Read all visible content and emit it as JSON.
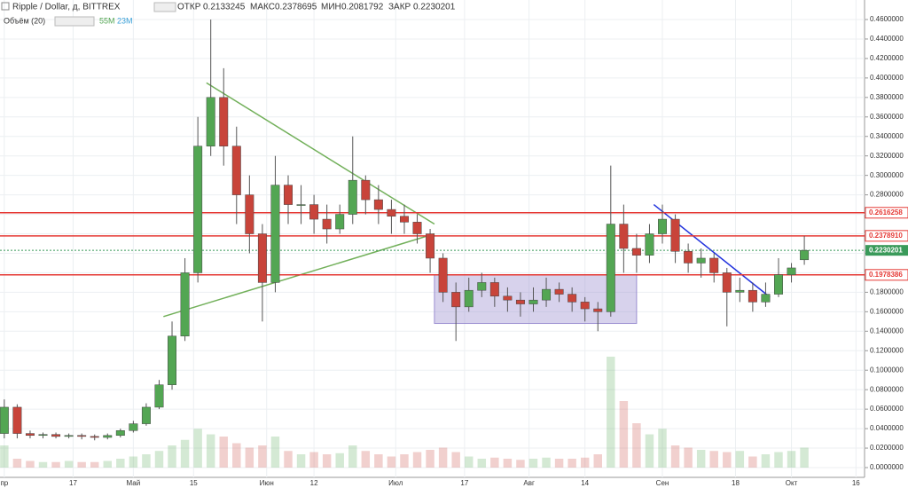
{
  "chart_data": {
    "type": "candlestick",
    "title": "Ripple / Dollar, д, BITTREX",
    "ohlc_labels": [
      "ОТКР",
      "МАКС",
      "МИН",
      "ЗАКР"
    ],
    "ohlc_values": [
      0.2133245,
      0.2378695,
      0.2081792,
      0.2230201
    ],
    "volume_title": "Объём (20)",
    "volume_labels": [
      "55M",
      "23M"
    ],
    "x": [
      0,
      3,
      6,
      9,
      12,
      15,
      18,
      21,
      24,
      27,
      30,
      33,
      36,
      39,
      42,
      45,
      48,
      51,
      54,
      57,
      60,
      63,
      66,
      69,
      72,
      75,
      78,
      81,
      84,
      87,
      90,
      93,
      96,
      99,
      102,
      105,
      108,
      111,
      114,
      117,
      120,
      123,
      126,
      129,
      132,
      135,
      138,
      141,
      144,
      147,
      150,
      153,
      156,
      159,
      162,
      165,
      168,
      171,
      174,
      177,
      180,
      183,
      186
    ],
    "open": [
      0.035,
      0.062,
      0.035,
      0.033,
      0.034,
      0.032,
      0.033,
      0.032,
      0.031,
      0.033,
      0.038,
      0.045,
      0.062,
      0.085,
      0.135,
      0.2,
      0.33,
      0.38,
      0.33,
      0.28,
      0.24,
      0.19,
      0.29,
      0.27,
      0.27,
      0.255,
      0.245,
      0.26,
      0.295,
      0.275,
      0.265,
      0.258,
      0.252,
      0.24,
      0.215,
      0.18,
      0.165,
      0.182,
      0.19,
      0.176,
      0.172,
      0.168,
      0.172,
      0.183,
      0.178,
      0.17,
      0.163,
      0.16,
      0.25,
      0.225,
      0.218,
      0.24,
      0.255,
      0.222,
      0.21,
      0.215,
      0.2,
      0.18,
      0.182,
      0.17,
      0.178,
      0.198,
      0.2133245
    ],
    "high": [
      0.07,
      0.065,
      0.038,
      0.036,
      0.036,
      0.035,
      0.035,
      0.034,
      0.035,
      0.04,
      0.048,
      0.066,
      0.09,
      0.15,
      0.215,
      0.36,
      0.46,
      0.41,
      0.35,
      0.3,
      0.25,
      0.32,
      0.3,
      0.29,
      0.28,
      0.27,
      0.27,
      0.34,
      0.3,
      0.29,
      0.275,
      0.27,
      0.26,
      0.245,
      0.22,
      0.19,
      0.195,
      0.2,
      0.195,
      0.185,
      0.18,
      0.185,
      0.195,
      0.19,
      0.185,
      0.175,
      0.17,
      0.31,
      0.27,
      0.24,
      0.25,
      0.27,
      0.26,
      0.23,
      0.225,
      0.22,
      0.205,
      0.195,
      0.19,
      0.19,
      0.215,
      0.21,
      0.2378695
    ],
    "low": [
      0.03,
      0.03,
      0.03,
      0.03,
      0.03,
      0.03,
      0.029,
      0.028,
      0.029,
      0.031,
      0.036,
      0.043,
      0.06,
      0.08,
      0.13,
      0.19,
      0.32,
      0.31,
      0.25,
      0.22,
      0.15,
      0.18,
      0.25,
      0.25,
      0.24,
      0.23,
      0.24,
      0.25,
      0.26,
      0.25,
      0.24,
      0.24,
      0.23,
      0.2,
      0.17,
      0.13,
      0.16,
      0.175,
      0.165,
      0.16,
      0.155,
      0.16,
      0.165,
      0.17,
      0.16,
      0.15,
      0.14,
      0.155,
      0.2,
      0.2,
      0.21,
      0.23,
      0.21,
      0.2,
      0.195,
      0.19,
      0.145,
      0.17,
      0.16,
      0.165,
      0.175,
      0.19,
      0.2081792
    ],
    "close": [
      0.062,
      0.035,
      0.033,
      0.034,
      0.032,
      0.033,
      0.032,
      0.031,
      0.033,
      0.038,
      0.045,
      0.062,
      0.085,
      0.135,
      0.2,
      0.33,
      0.38,
      0.33,
      0.28,
      0.24,
      0.19,
      0.29,
      0.27,
      0.27,
      0.255,
      0.245,
      0.26,
      0.295,
      0.275,
      0.265,
      0.258,
      0.252,
      0.24,
      0.215,
      0.18,
      0.165,
      0.182,
      0.19,
      0.176,
      0.172,
      0.168,
      0.172,
      0.183,
      0.178,
      0.17,
      0.163,
      0.16,
      0.25,
      0.225,
      0.218,
      0.24,
      0.255,
      0.222,
      0.21,
      0.215,
      0.2,
      0.18,
      0.182,
      0.17,
      0.178,
      0.198,
      0.205,
      0.2230201
    ],
    "volume": [
      20,
      8,
      6,
      5,
      5,
      6,
      5,
      5,
      6,
      8,
      10,
      12,
      15,
      20,
      25,
      35,
      30,
      28,
      22,
      18,
      20,
      28,
      15,
      12,
      14,
      12,
      13,
      20,
      15,
      12,
      10,
      12,
      14,
      16,
      18,
      14,
      10,
      8,
      9,
      8,
      7,
      8,
      9,
      8,
      8,
      9,
      12,
      100,
      60,
      40,
      30,
      35,
      20,
      18,
      16,
      15,
      14,
      15,
      10,
      12,
      14,
      15,
      18
    ],
    "up_color": "#53a653",
    "down_color": "#c8443a",
    "xlim": [
      -1,
      200
    ],
    "xticks": [
      {
        "value": 0,
        "label": "пр"
      },
      {
        "value": 16,
        "label": "17"
      },
      {
        "value": 30,
        "label": "Май"
      },
      {
        "value": 44,
        "label": "15"
      },
      {
        "value": 61,
        "label": "Июн"
      },
      {
        "value": 72,
        "label": "12"
      },
      {
        "value": 91,
        "label": "Июл"
      },
      {
        "value": 107,
        "label": "17"
      },
      {
        "value": 122,
        "label": "Авг"
      },
      {
        "value": 135,
        "label": "14"
      },
      {
        "value": 153,
        "label": "Сен"
      },
      {
        "value": 170,
        "label": "18"
      },
      {
        "value": 183,
        "label": "Окт"
      },
      {
        "value": 198,
        "label": "16"
      }
    ],
    "ylim": [
      0,
      0.46
    ],
    "yticks": [
      {
        "value": 0,
        "label": "0.0000000"
      },
      {
        "value": 0.02,
        "label": "0.0200000"
      },
      {
        "value": 0.04,
        "label": "0.0400000"
      },
      {
        "value": 0.06,
        "label": "0.0600000"
      },
      {
        "value": 0.08,
        "label": "0.0800000"
      },
      {
        "value": 0.1,
        "label": "0.1000000"
      },
      {
        "value": 0.12,
        "label": "0.1200000"
      },
      {
        "value": 0.14,
        "label": "0.1400000"
      },
      {
        "value": 0.16,
        "label": "0.1600000"
      },
      {
        "value": 0.18,
        "label": "0.1800000"
      },
      {
        "value": 0.2,
        "label": "0.2000000"
      },
      {
        "value": 0.22,
        "label": "0.2200000"
      },
      {
        "value": 0.24,
        "label": "0.2400000"
      },
      {
        "value": 0.26,
        "label": "0.2600000"
      },
      {
        "value": 0.28,
        "label": "0.2800000"
      },
      {
        "value": 0.3,
        "label": "0.3000000"
      },
      {
        "value": 0.32,
        "label": "0.3200000"
      },
      {
        "value": 0.34,
        "label": "0.3400000"
      },
      {
        "value": 0.36,
        "label": "0.3600000"
      },
      {
        "value": 0.38,
        "label": "0.3800000"
      },
      {
        "value": 0.4,
        "label": "0.4000000"
      },
      {
        "value": 0.42,
        "label": "0.4200000"
      },
      {
        "value": 0.44,
        "label": "0.4400000"
      },
      {
        "value": 0.46,
        "label": "0.4600000"
      }
    ],
    "grid": true,
    "levels": [
      {
        "value": 0.2616258,
        "color": "#e53935"
      },
      {
        "value": 0.237891,
        "label": "0.2378910",
        "color": "#e53935"
      },
      {
        "value": 0.1978386,
        "color": "#e53935"
      }
    ],
    "last_price": {
      "value": 0.2230201,
      "color": "#3a9a5a"
    },
    "trendlines": [
      {
        "x": [
          47,
          100
        ],
        "y": [
          0.395,
          0.25
        ],
        "color": "#72b05a"
      },
      {
        "x": [
          37,
          100
        ],
        "y": [
          0.155,
          0.24
        ],
        "color": "#72b05a"
      },
      {
        "x": [
          151,
          178
        ],
        "y": [
          0.27,
          0.175
        ],
        "color": "#2233dd"
      }
    ],
    "range_box": {
      "x": [
        100,
        147
      ],
      "y": [
        0.148,
        0.198
      ],
      "color": "#9a8fd0"
    }
  }
}
